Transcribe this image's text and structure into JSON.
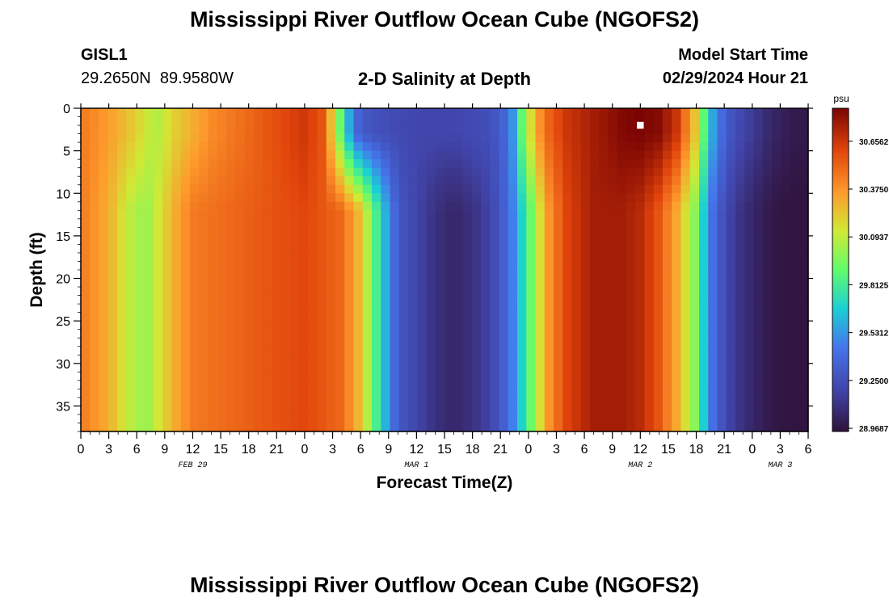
{
  "page": {
    "title": "Mississippi River Outflow Ocean Cube (NGOFS2)",
    "station_id": "GISL1",
    "station_coords": "29.2650N  89.9580W",
    "subtitle": "2-D Salinity at Depth",
    "model_start_label": "Model Start Time",
    "model_start_value": "02/29/2024 Hour 21",
    "footer_title": "Mississippi River Outflow Ocean Cube (NGOFS2)"
  },
  "chart_data": {
    "type": "heatmap",
    "title": "2-D Salinity at Depth",
    "xlabel": "Forecast Time(Z)",
    "ylabel": "Depth (ft)",
    "colorbar_unit": "psu",
    "x_range_hours": [
      0,
      78
    ],
    "x_tick_hours": [
      0,
      3,
      6,
      9,
      12,
      15,
      18,
      21,
      24,
      27,
      30,
      33,
      36,
      39,
      42,
      45,
      48,
      51,
      54,
      57,
      60,
      63,
      66,
      69,
      72,
      75,
      78
    ],
    "x_tick_labels": [
      "0",
      "3",
      "6",
      "9",
      "12",
      "15",
      "18",
      "21",
      "0",
      "3",
      "6",
      "9",
      "12",
      "15",
      "18",
      "21",
      "0",
      "3",
      "6",
      "9",
      "12",
      "15",
      "18",
      "21",
      "0",
      "3",
      "6"
    ],
    "date_labels": [
      {
        "hour": 12,
        "label": "FEB 29"
      },
      {
        "hour": 36,
        "label": "MAR 1"
      },
      {
        "hour": 60,
        "label": "MAR 2"
      },
      {
        "hour": 75,
        "label": "MAR 3"
      }
    ],
    "y_range_ft": [
      0,
      38
    ],
    "y_ticks": [
      0,
      5,
      10,
      15,
      20,
      25,
      30,
      35
    ],
    "y_tick_labels": [
      "0",
      "5",
      "10",
      "15",
      "20",
      "25",
      "30",
      "35"
    ],
    "colorbar_range": [
      28.95,
      30.85
    ],
    "colorbar_ticks": [
      30.6562,
      30.375,
      30.0937,
      29.8125,
      29.5312,
      29.25,
      28.9687
    ],
    "colorbar_tick_labels": [
      "30.6562",
      "30.3750",
      "30.0937",
      "29.8125",
      "29.5312",
      "29.2500",
      "28.9687"
    ],
    "marker": {
      "hour": 60,
      "depth_ft": 2
    },
    "surface_profile": {
      "hours": [
        0,
        3,
        6,
        8,
        10,
        14,
        18,
        22,
        24,
        26,
        27,
        28,
        29,
        30,
        32,
        36,
        40,
        44,
        46,
        47,
        48,
        49,
        50,
        52,
        55,
        58,
        60,
        62,
        64,
        66,
        67,
        68,
        69,
        70,
        72,
        74,
        76,
        78
      ],
      "values": [
        30.45,
        30.35,
        30.2,
        30.05,
        30.2,
        30.4,
        30.5,
        30.6,
        30.65,
        30.55,
        30.2,
        29.85,
        29.5,
        29.3,
        29.25,
        29.2,
        29.2,
        29.25,
        29.4,
        29.8,
        30.1,
        30.35,
        30.5,
        30.65,
        30.75,
        30.83,
        30.85,
        30.82,
        30.65,
        30.2,
        29.8,
        29.5,
        29.35,
        29.25,
        29.15,
        29.05,
        29.0,
        28.98
      ]
    },
    "bottom_profile": {
      "hours": [
        0,
        3,
        5,
        7,
        8,
        10,
        12,
        16,
        20,
        24,
        28,
        30,
        32,
        34,
        36,
        38,
        40,
        42,
        44,
        46,
        48,
        49,
        50,
        52,
        55,
        58,
        60,
        62,
        64,
        66,
        67,
        68,
        70,
        72,
        74,
        76,
        78
      ],
      "values": [
        30.45,
        30.3,
        30.1,
        30.0,
        30.1,
        30.3,
        30.45,
        30.5,
        30.55,
        30.6,
        30.5,
        30.25,
        29.75,
        29.3,
        29.2,
        29.1,
        29.05,
        29.1,
        29.2,
        29.4,
        29.85,
        30.1,
        30.35,
        30.6,
        30.75,
        30.75,
        30.7,
        30.55,
        30.3,
        29.95,
        29.6,
        29.35,
        29.15,
        29.05,
        28.98,
        28.96,
        28.96
      ]
    }
  }
}
